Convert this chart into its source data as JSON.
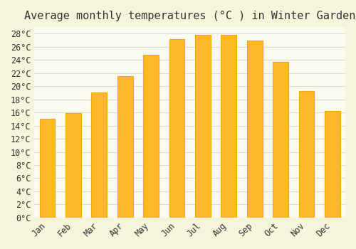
{
  "title": "Average monthly temperatures (°C ) in Winter Garden",
  "months": [
    "Jan",
    "Feb",
    "Mar",
    "Apr",
    "May",
    "Jun",
    "Jul",
    "Aug",
    "Sep",
    "Oct",
    "Nov",
    "Dec"
  ],
  "values": [
    15.0,
    15.9,
    19.0,
    21.5,
    24.8,
    27.2,
    27.8,
    27.8,
    27.0,
    23.7,
    19.3,
    16.2
  ],
  "bar_color": "#FDB827",
  "bar_edge_color": "#F5A800",
  "background_color": "#F5F5DC",
  "plot_bg_color": "#FAFAF0",
  "grid_color": "#DDDDCC",
  "text_color": "#333333",
  "title_fontsize": 11,
  "tick_fontsize": 8.5,
  "ylim": [
    0,
    29
  ],
  "ytick_step": 2,
  "font_family": "monospace"
}
